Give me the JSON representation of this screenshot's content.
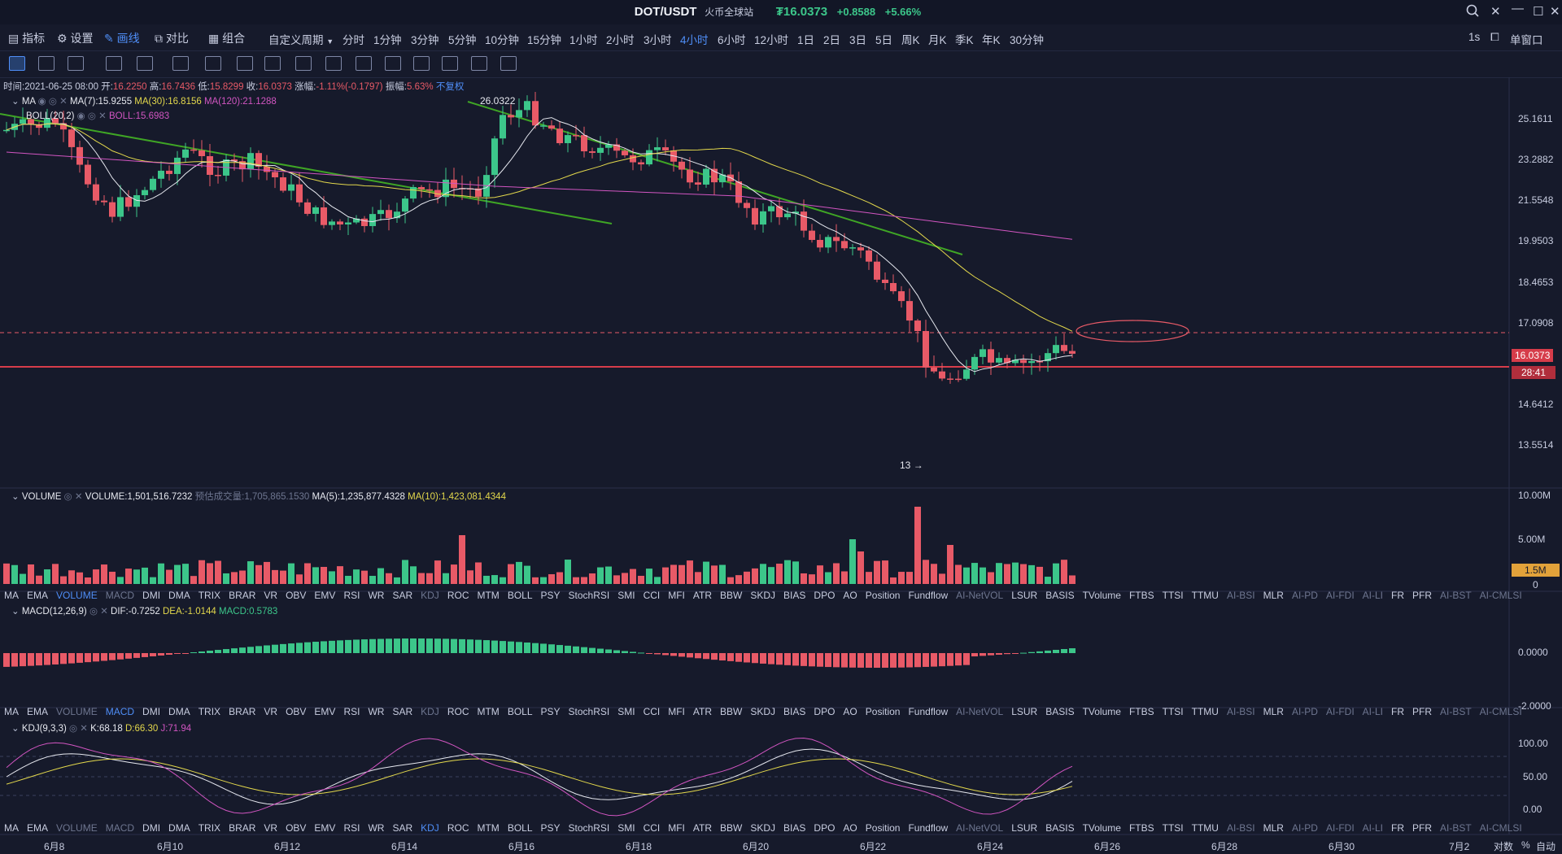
{
  "title": {
    "pair": "DOT/USDT",
    "exchange": "火币全球站",
    "price": "₮16.0373",
    "change": "+0.8588",
    "change_pct": "+5.66%"
  },
  "toolbar": {
    "indicators": "指标",
    "settings": "设置",
    "draw": "画线",
    "compare": "对比",
    "combine": "组合",
    "custom_period": "自定义周期",
    "periods": [
      "分时",
      "1分钟",
      "3分钟",
      "5分钟",
      "10分钟",
      "15分钟",
      "1小时",
      "2小时",
      "3小时",
      "4小时",
      "6小时",
      "12小时",
      "1日",
      "2日",
      "3日",
      "5日",
      "周K",
      "月K",
      "季K",
      "年K",
      "30分钟"
    ],
    "active_period": "4小时",
    "interval_right": "1s",
    "single_window": "单窗口"
  },
  "info": {
    "time_label": "时间:",
    "time": "2021-06-25 08:00",
    "open_label": "开:",
    "open": "16.2250",
    "high_label": "高:",
    "high": "16.7436",
    "low_label": "低:",
    "low": "15.8299",
    "close_label": "收:",
    "close": "16.0373",
    "change_label": "涨幅:",
    "change": "-1.11%(-0.1797)",
    "amp_label": "振幅:",
    "amp": "5.63%",
    "adjust": "不复权"
  },
  "ma_legend": {
    "name": "MA",
    "ma7": "MA(7):15.9255",
    "ma30": "MA(30):16.8156",
    "ma120": "MA(120):21.1288"
  },
  "boll_legend": {
    "name": "BOLL(20,2)",
    "boll": "BOLL:15.6983"
  },
  "annotations": {
    "high_mark": "26.0322",
    "low_mark": "13"
  },
  "price_axis": [
    "25.1611",
    "23.2882",
    "21.5548",
    "19.9503",
    "18.4653",
    "17.0908",
    "14.6412",
    "13.5514"
  ],
  "current_price_badge": "16.0373",
  "countdown_badge": "28:41",
  "volume_legend": {
    "name": "VOLUME",
    "volume": "VOLUME:1,501,516.7232",
    "estimate": "预估成交量:1,705,865.1530",
    "ma5": "MA(5):1,235,877.4328",
    "ma10": "MA(10):1,423,081.4344"
  },
  "volume_axis": [
    "10.00M",
    "5.00M",
    "0"
  ],
  "volume_badge": "1.5M",
  "macd_legend": {
    "name": "MACD(12,26,9)",
    "dif": "DIF:-0.7252",
    "dea": "DEA:-1.0144",
    "macd": "MACD:0.5783"
  },
  "macd_axis": [
    "0.0000",
    "-2.0000"
  ],
  "kdj_legend": {
    "name": "KDJ(9,3,3)",
    "k": "K:68.18",
    "d": "D:66.30",
    "j": "J:71.94"
  },
  "kdj_axis": [
    "100.00",
    "50.00",
    "0.00"
  ],
  "indicator_tabs": [
    "MA",
    "EMA",
    "VOLUME",
    "MACD",
    "DMI",
    "DMA",
    "TRIX",
    "BRAR",
    "VR",
    "OBV",
    "EMV",
    "RSI",
    "WR",
    "SAR",
    "KDJ",
    "ROC",
    "MTM",
    "BOLL",
    "PSY",
    "StochRSI",
    "SMI",
    "CCI",
    "MFI",
    "ATR",
    "BBW",
    "SKDJ",
    "BIAS",
    "DPO",
    "AO",
    "Position",
    "Fundflow",
    "AI-NetVOL",
    "LSUR",
    "BASIS",
    "TVolume",
    "FTBS",
    "TTSI",
    "TTMU",
    "AI-BSI",
    "MLR",
    "AI-PD",
    "AI-FDI",
    "AI-LI",
    "FR",
    "PFR",
    "AI-BST",
    "AI-CMLSI"
  ],
  "date_axis": [
    "6月8",
    "6月10",
    "6月12",
    "6月14",
    "6月16",
    "6月18",
    "6月20",
    "6月22",
    "6月24",
    "6月26",
    "6月28",
    "6月30",
    "7月2"
  ],
  "bottom_right": {
    "log": "对数",
    "pct": "%",
    "auto": "自动"
  },
  "colors": {
    "up": "#3cc68a",
    "down": "#e85a67",
    "ma7": "#e6e8ef",
    "ma30": "#e3d84c",
    "ma120": "#d155c1",
    "trend": "#3fa525",
    "accent": "#4f8ef7"
  }
}
